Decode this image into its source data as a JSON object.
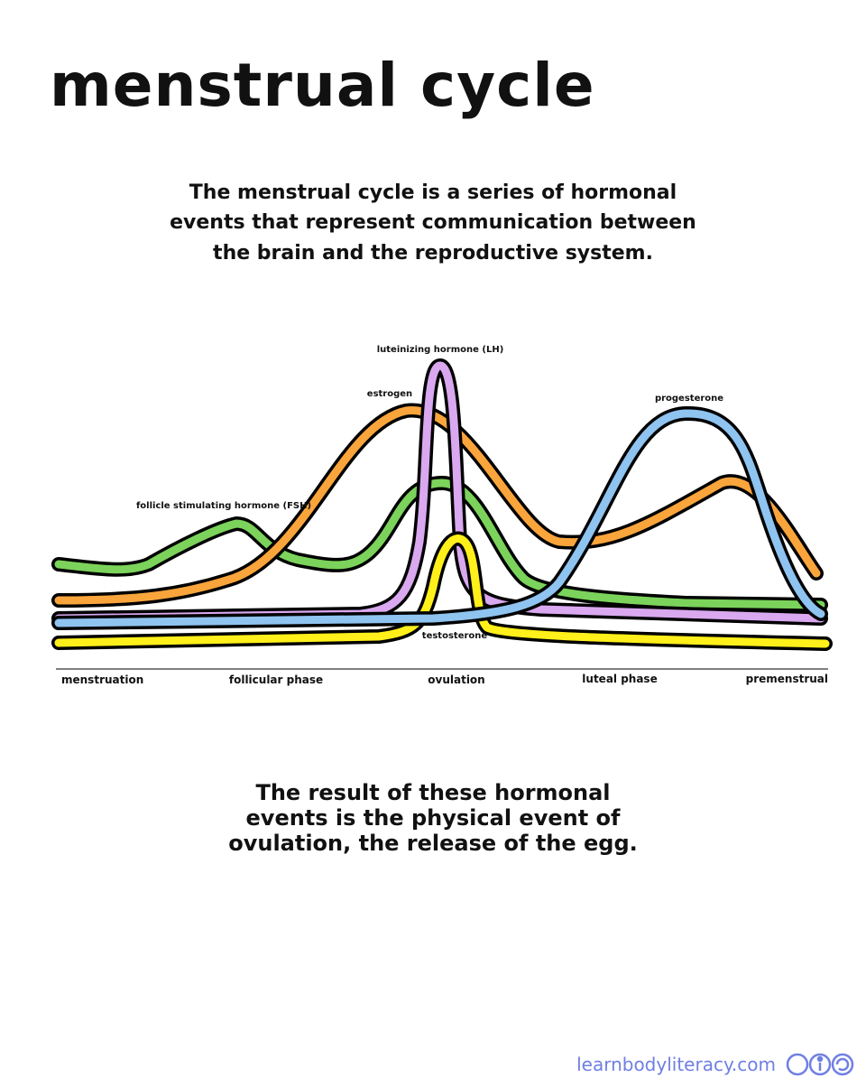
{
  "title": "menstrual cycle",
  "intro": {
    "lines": [
      "The menstrual cycle is a series of hormonal",
      "events that represent communication between",
      "the brain and the reproductive system."
    ]
  },
  "hormones": {
    "fsh": "follicle stimulating hormone (FSH)",
    "estrogen": "estrogen",
    "lh": "luteinizing hormone (LH)",
    "progesterone": "progesterone",
    "testosterone": "testosterone"
  },
  "phases": [
    "menstruation",
    "follicular phase",
    "ovulation",
    "luteal phase",
    "premenstrual"
  ],
  "conclusion": {
    "lines": [
      "The result of these hormonal",
      "events is the physical event of",
      "ovulation, the release of the egg."
    ]
  },
  "footer": {
    "site": "learnbodyliteracy.com"
  }
}
